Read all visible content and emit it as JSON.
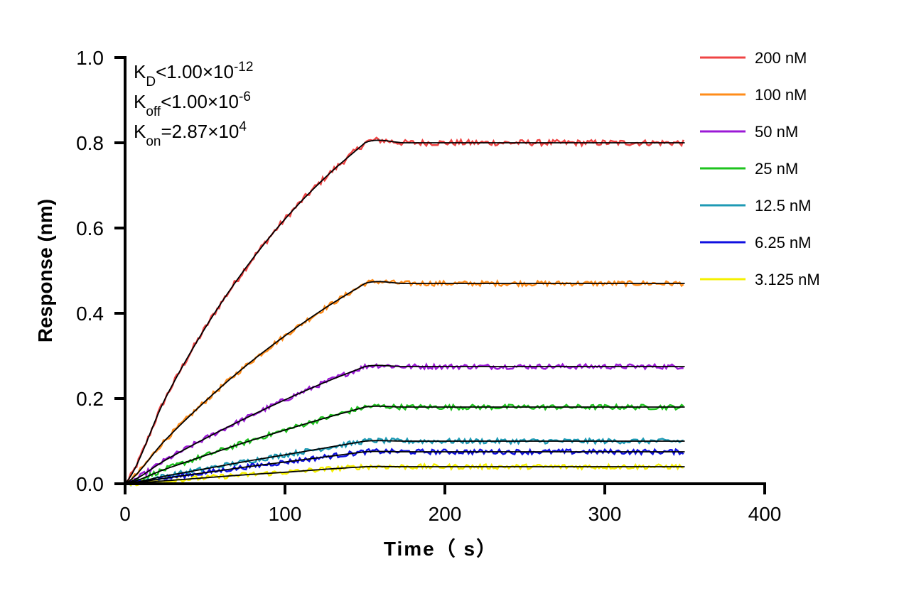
{
  "chart_data": {
    "type": "line",
    "title": "",
    "xlabel": "Time（ s）",
    "ylabel": "Response (nm)",
    "xlim": [
      0,
      400
    ],
    "ylim": [
      0,
      1.0
    ],
    "xticks": [
      "0",
      "100",
      "200",
      "300",
      "400"
    ],
    "yticks": [
      "0.0",
      "0.2",
      "0.4",
      "0.6",
      "0.8",
      "1.0"
    ],
    "grid": false,
    "legend_position": "top-right",
    "fit_color": "#000000",
    "annotations": [
      {
        "main": "K",
        "sub": "D",
        "rest": "<1.00×10",
        "sup": "-12"
      },
      {
        "main": "K",
        "sub": "off",
        "rest": "<1.00×10",
        "sup": "-6"
      },
      {
        "main": "K",
        "sub": "on",
        "rest": "=2.87×10",
        "sup": "4"
      }
    ],
    "x": [
      0,
      25,
      50,
      75,
      100,
      125,
      150,
      175,
      200,
      225,
      250,
      275,
      300,
      325,
      350
    ],
    "series": [
      {
        "name": "200 nM",
        "color": "#ef4444",
        "y": [
          0,
          0.199,
          0.365,
          0.504,
          0.621,
          0.718,
          0.8,
          0.8,
          0.8,
          0.8,
          0.8,
          0.8,
          0.8,
          0.8,
          0.8
        ]
      },
      {
        "name": "100 nM",
        "color": "#ff8c1a",
        "y": [
          0,
          0.102,
          0.193,
          0.275,
          0.347,
          0.412,
          0.47,
          0.47,
          0.47,
          0.47,
          0.47,
          0.47,
          0.47,
          0.47,
          0.47
        ]
      },
      {
        "name": "50 nM",
        "color": "#9b19d6",
        "y": [
          0,
          0.055,
          0.106,
          0.153,
          0.197,
          0.238,
          0.275,
          0.275,
          0.275,
          0.275,
          0.275,
          0.275,
          0.275,
          0.275,
          0.275
        ]
      },
      {
        "name": "25 nM",
        "color": "#1ec31e",
        "y": [
          0,
          0.034,
          0.066,
          0.097,
          0.126,
          0.154,
          0.18,
          0.18,
          0.18,
          0.18,
          0.18,
          0.18,
          0.18,
          0.18,
          0.18
        ]
      },
      {
        "name": "12.5 nM",
        "color": "#1e9ab4",
        "y": [
          0,
          0.018,
          0.035,
          0.052,
          0.068,
          0.084,
          0.1,
          0.1,
          0.1,
          0.1,
          0.1,
          0.1,
          0.1,
          0.1,
          0.1
        ]
      },
      {
        "name": "6.25 nM",
        "color": "#1010e0",
        "y": [
          0,
          0.013,
          0.026,
          0.039,
          0.051,
          0.063,
          0.075,
          0.075,
          0.075,
          0.075,
          0.075,
          0.075,
          0.075,
          0.075,
          0.075
        ]
      },
      {
        "name": "3.125 nM",
        "color": "#f5f000",
        "y": [
          0,
          0.007,
          0.014,
          0.021,
          0.027,
          0.034,
          0.04,
          0.04,
          0.04,
          0.04,
          0.04,
          0.04,
          0.04,
          0.04,
          0.04
        ]
      }
    ]
  }
}
